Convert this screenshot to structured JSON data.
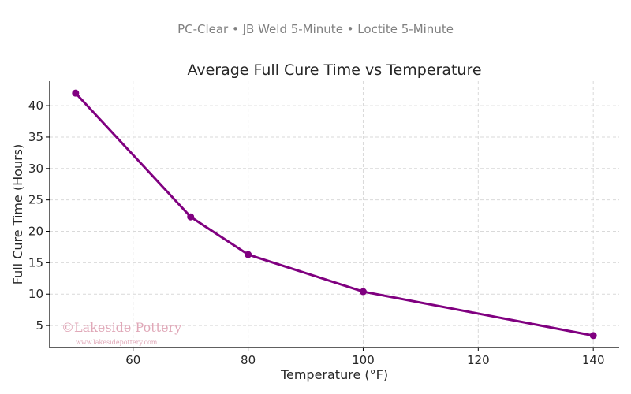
{
  "header": {
    "subtitle": "PC-Clear • JB Weld 5-Minute • Loctite 5-Minute"
  },
  "watermark": {
    "name": "©Lakeside Pottery",
    "url": "www.lakesidepottery.com"
  },
  "chart_data": {
    "type": "line",
    "title": "Average Full Cure Time vs Temperature",
    "xlabel": "Temperature (°F)",
    "ylabel": "Full Cure Time (Hours)",
    "x": [
      50,
      70,
      80,
      100,
      140
    ],
    "series": [
      {
        "values": [
          42.0,
          22.3,
          16.3,
          10.4,
          3.4
        ],
        "color": "#800080"
      }
    ],
    "xlim": [
      45.5,
      144.5
    ],
    "ylim": [
      1.5,
      43.9
    ],
    "xticks": [
      60,
      80,
      100,
      120,
      140
    ],
    "yticks": [
      5,
      10,
      15,
      20,
      25,
      30,
      35,
      40
    ],
    "grid": true,
    "legend": "none"
  }
}
